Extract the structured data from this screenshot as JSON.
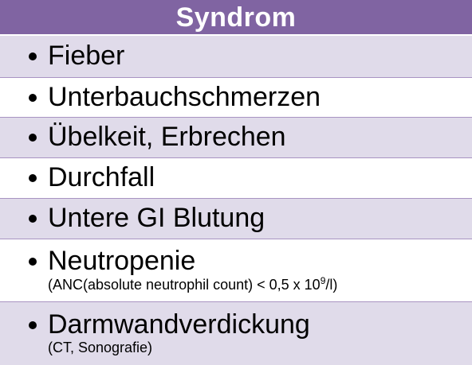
{
  "header": {
    "title": "Syndrom"
  },
  "colors": {
    "header_bg": "#8064a2",
    "row_shaded": "#e0dbea",
    "row_plain": "#ffffff"
  },
  "rows": [
    {
      "label": "Fieber"
    },
    {
      "label": "Unterbauchschmerzen"
    },
    {
      "label": "Übelkeit, Erbrechen"
    },
    {
      "label": "Durchfall"
    },
    {
      "label": "Untere GI Blutung"
    },
    {
      "label": "Neutropenie",
      "sub_prefix": "(ANC(absolute neutrophil count) < 0,5 x 10",
      "sub_sup": "9",
      "sub_suffix": "/l)"
    },
    {
      "label": "Darmwandverdickung",
      "sub": "(CT, Sonografie)"
    }
  ]
}
